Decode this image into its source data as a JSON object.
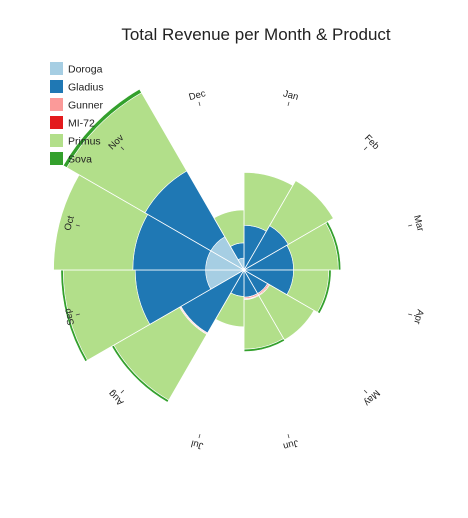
{
  "chart_data": {
    "type": "polar-stacked-bar",
    "title": "Total Revenue per Month & Product",
    "categories": [
      "Jan",
      "Feb",
      "Mar",
      "Apr",
      "May",
      "Jun",
      "Jul",
      "Aug",
      "Sep",
      "Oct",
      "Nov",
      "Dec"
    ],
    "series": [
      {
        "name": "Doroga",
        "color": "#a6cee3",
        "values": [
          0,
          0,
          0,
          0,
          0,
          0,
          0,
          0,
          48,
          48,
          48,
          15
        ]
      },
      {
        "name": "Gladius",
        "color": "#1f78b4",
        "values": [
          56,
          64,
          62,
          62,
          34,
          34,
          33,
          91,
          88,
          91,
          95,
          19
        ]
      },
      {
        "name": "Gunner",
        "color": "#fb9a99",
        "values": [
          0,
          0,
          0,
          0,
          2,
          2,
          0,
          1,
          0,
          0,
          0,
          0
        ]
      },
      {
        "name": "MI-72",
        "color": "#e31a1c",
        "values": [
          0,
          0,
          0,
          0,
          1,
          1,
          0,
          1,
          0,
          0,
          0,
          0
        ]
      },
      {
        "name": "Primus",
        "color": "#b2df8a",
        "values": [
          66,
          65,
          56,
          44,
          64,
          62,
          38,
          95,
          90,
          99,
          113,
          41
        ]
      },
      {
        "name": "Sova",
        "color": "#33a02c",
        "values": [
          0,
          0,
          3,
          3,
          0,
          3,
          0,
          3,
          3,
          0,
          5,
          0
        ]
      }
    ],
    "legend_position": "top-left",
    "grid": false
  }
}
